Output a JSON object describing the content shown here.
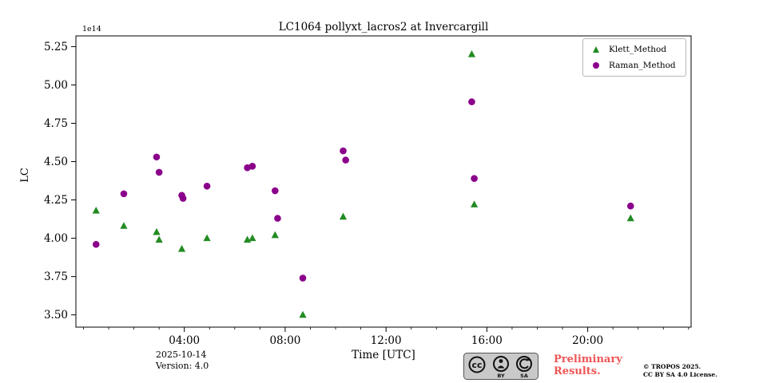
{
  "chart_data": {
    "type": "scatter",
    "title": "LC1064 pollyxt_lacros2 at Invercargill",
    "xlabel": "Time [UTC]",
    "ylabel": "LC",
    "y_offset_label": "1e14",
    "x_unit": "hours UTC on 2025-10-14",
    "xlim": [
      -0.3,
      24.1
    ],
    "ylim": [
      3.42,
      5.32
    ],
    "grid": false,
    "legend_position": "upper right",
    "x_ticks": [
      {
        "value": 4,
        "label": "04:00"
      },
      {
        "value": 8,
        "label": "08:00"
      },
      {
        "value": 12,
        "label": "12:00"
      },
      {
        "value": 16,
        "label": "16:00"
      },
      {
        "value": 20,
        "label": "20:00"
      }
    ],
    "y_ticks": [
      {
        "value": 3.5,
        "label": "3.50"
      },
      {
        "value": 3.75,
        "label": "3.75"
      },
      {
        "value": 4.0,
        "label": "4.00"
      },
      {
        "value": 4.25,
        "label": "4.25"
      },
      {
        "value": 4.5,
        "label": "4.50"
      },
      {
        "value": 4.75,
        "label": "4.75"
      },
      {
        "value": 5.0,
        "label": "5.00"
      },
      {
        "value": 5.25,
        "label": "5.25"
      }
    ],
    "series": [
      {
        "name": "Klett_Method",
        "marker": "triangle",
        "color": "#228B22",
        "points": [
          [
            0.5,
            4.18
          ],
          [
            1.6,
            4.08
          ],
          [
            2.9,
            4.04
          ],
          [
            3.0,
            3.99
          ],
          [
            3.9,
            3.93
          ],
          [
            4.9,
            4.0
          ],
          [
            6.5,
            3.99
          ],
          [
            6.7,
            4.0
          ],
          [
            7.6,
            4.02
          ],
          [
            8.7,
            3.5
          ],
          [
            10.3,
            4.14
          ],
          [
            15.4,
            5.2
          ],
          [
            15.5,
            4.22
          ],
          [
            21.7,
            4.13
          ]
        ]
      },
      {
        "name": "Raman_Method",
        "marker": "circle",
        "color": "#8B008B",
        "points": [
          [
            0.5,
            3.96
          ],
          [
            1.6,
            4.29
          ],
          [
            2.9,
            4.53
          ],
          [
            3.0,
            4.43
          ],
          [
            3.9,
            4.28
          ],
          [
            3.95,
            4.26
          ],
          [
            4.9,
            4.34
          ],
          [
            6.5,
            4.46
          ],
          [
            6.7,
            4.47
          ],
          [
            7.6,
            4.31
          ],
          [
            7.7,
            4.13
          ],
          [
            8.7,
            3.74
          ],
          [
            10.3,
            4.57
          ],
          [
            10.4,
            4.51
          ],
          [
            15.4,
            4.89
          ],
          [
            15.5,
            4.39
          ],
          [
            21.7,
            4.21
          ]
        ]
      }
    ]
  },
  "colors": {
    "klett": "#228B22",
    "raman": "#8B008B",
    "preliminary": "#ee5555",
    "axis": "#000000"
  },
  "footer": {
    "date": "2025-10-14",
    "version": "Version: 4.0",
    "preliminary_line1": "Preliminary",
    "preliminary_line2": "Results.",
    "copyright_line1": "© TROPOS 2025.",
    "copyright_line2": "CC BY SA 4.0 License.",
    "cc_badge": {
      "cc_text": "cc",
      "by_label": "BY",
      "sa_label": "SA"
    }
  }
}
